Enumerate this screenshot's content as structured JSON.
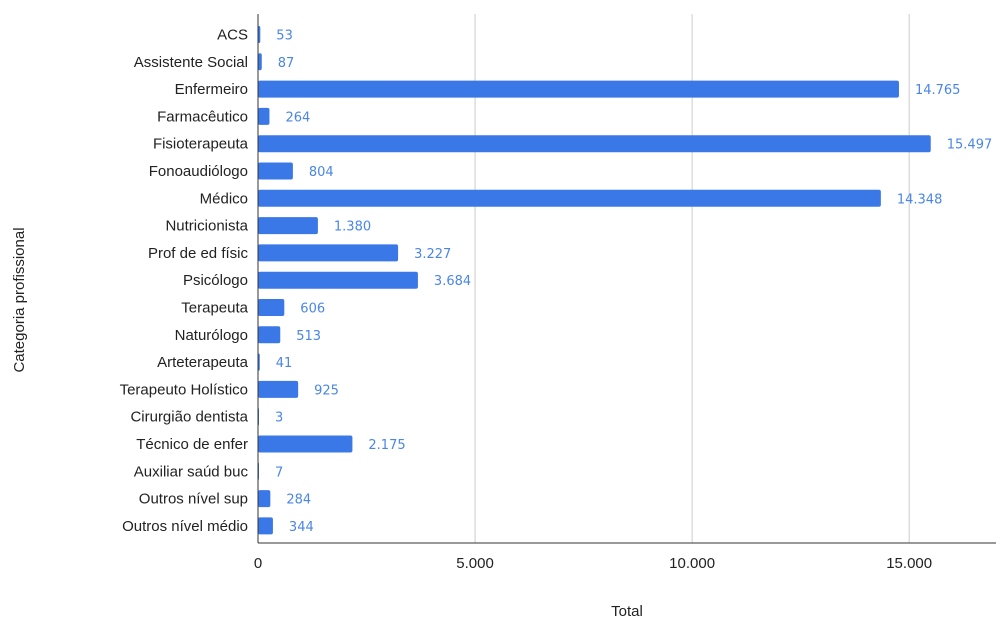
{
  "chart_data": {
    "type": "bar",
    "orientation": "horizontal",
    "xlabel": "Total",
    "ylabel": "Categoria profissional",
    "xlim": [
      0,
      17000
    ],
    "x_ticks": [
      0,
      5000,
      10000,
      15000
    ],
    "x_tick_labels": [
      "0",
      "5.000",
      "10.000",
      "15.000"
    ],
    "grid": "vertical",
    "bar_color": "#3b78e7",
    "label_color": "#4a86e8",
    "categories": [
      "ACS",
      "Assistente Social",
      "Enfermeiro",
      "Farmacêutico",
      "Fisioterapeuta",
      "Fonoaudiólogo",
      "Médico",
      "Nutricionista",
      "Prof de ed físic",
      "Psicólogo",
      "Terapeuta",
      "Naturólogo",
      "Arteterapeuta",
      "Terapeuto Holístico",
      "Cirurgião dentista",
      "Técnico de enfer",
      "Auxiliar saúd buc",
      "Outros nível sup",
      "Outros nível médio"
    ],
    "values": [
      53,
      87,
      14765,
      264,
      15497,
      804,
      14348,
      1380,
      3227,
      3684,
      606,
      513,
      41,
      925,
      3,
      2175,
      7,
      284,
      344
    ],
    "value_labels": [
      "53",
      "87",
      "14.765",
      "264",
      "15.497",
      "804",
      "14.348",
      "1.380",
      "3.227",
      "3.684",
      "606",
      "513",
      "41",
      "925",
      "3",
      "2.175",
      "7",
      "284",
      "344"
    ]
  }
}
